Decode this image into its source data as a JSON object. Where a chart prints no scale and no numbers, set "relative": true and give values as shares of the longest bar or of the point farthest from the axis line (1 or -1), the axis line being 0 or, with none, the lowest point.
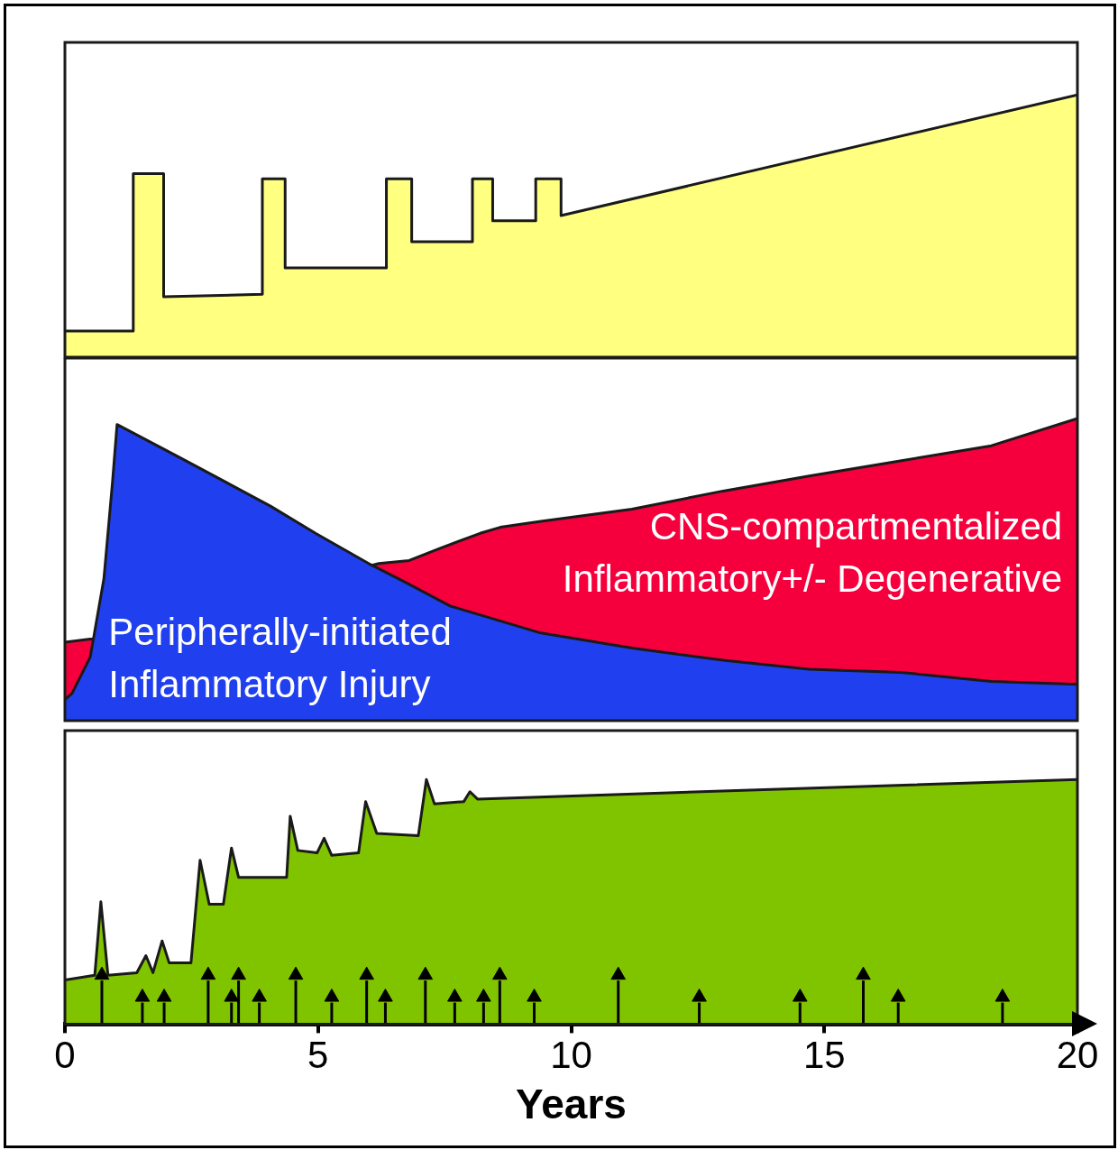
{
  "chart_data": [
    {
      "type": "area",
      "relative": true,
      "xlim": [
        0,
        20
      ],
      "tick_labels": false,
      "legend": false,
      "series": [
        {
          "type": "area",
          "color": "#ffff80",
          "marker": "none",
          "x": [
            0,
            1.35,
            1.35,
            1.95,
            1.95,
            3.9,
            3.9,
            4.35,
            4.35,
            6.35,
            6.35,
            6.85,
            6.85,
            8.05,
            8.05,
            8.45,
            8.45,
            9.3,
            9.3,
            9.8,
            9.8,
            20
          ],
          "values": [
            0.1,
            0.1,
            0.7,
            0.7,
            0.23,
            0.24,
            0.68,
            0.68,
            0.34,
            0.34,
            0.68,
            0.68,
            0.44,
            0.44,
            0.68,
            0.68,
            0.52,
            0.52,
            0.68,
            0.68,
            0.54,
            1
          ]
        }
      ]
    },
    {
      "type": "area",
      "relative": true,
      "xlim": [
        0,
        20
      ],
      "tick_labels": false,
      "legend": false,
      "series": [
        {
          "type": "area",
          "name": "CNS-compartmentalized Inflammatory+/- Degenerative",
          "color": "#f5003c",
          "marker": "none",
          "x": [
            0,
            0.5,
            0.6,
            6.2,
            6.8,
            7.4,
            8.2,
            8.6,
            9.4,
            11.2,
            13,
            14.7,
            16.5,
            18.3,
            20
          ],
          "values": [
            0.26,
            0.27,
            0.27,
            0.52,
            0.53,
            0.57,
            0.62,
            0.64,
            0.66,
            0.7,
            0.76,
            0.81,
            0.86,
            0.91,
            1
          ]
        },
        {
          "type": "area",
          "name": "Peripherally-initiated Inflammatory Injury",
          "color": "#2040f0",
          "marker": "none",
          "x": [
            0,
            0.14,
            0.5,
            0.77,
            0.94,
            1.03,
            2.28,
            4.06,
            4.95,
            6.0,
            6.7,
            7.6,
            9.4,
            11.2,
            13,
            14.7,
            16.5,
            18.3,
            20
          ],
          "values": [
            0.07,
            0.09,
            0.21,
            0.47,
            0.79,
            0.98,
            0.87,
            0.71,
            0.62,
            0.52,
            0.46,
            0.38,
            0.29,
            0.24,
            0.2,
            0.17,
            0.16,
            0.13,
            0.12
          ]
        }
      ]
    },
    {
      "type": "area",
      "relative": true,
      "xlim": [
        0,
        20
      ],
      "xticks": [
        0,
        5,
        10,
        15,
        20
      ],
      "xlabel": "Years",
      "tick_labels": "x",
      "legend": false,
      "series": [
        {
          "type": "area",
          "color": "#80c400",
          "marker": "none",
          "x": [
            0,
            0.59,
            0.71,
            0.85,
            1.42,
            1.6,
            1.74,
            1.92,
            2.06,
            2.49,
            2.67,
            2.85,
            3.13,
            3.29,
            3.43,
            4.38,
            4.45,
            4.6,
            4.98,
            5.12,
            5.27,
            5.8,
            5.94,
            6.16,
            6.98,
            7.14,
            7.3,
            7.88,
            8.0,
            8.15,
            20
          ],
          "values": [
            0.18,
            0.2,
            0.5,
            0.2,
            0.21,
            0.28,
            0.21,
            0.34,
            0.25,
            0.25,
            0.67,
            0.49,
            0.49,
            0.72,
            0.6,
            0.6,
            0.85,
            0.71,
            0.7,
            0.76,
            0.69,
            0.7,
            0.91,
            0.78,
            0.77,
            1,
            0.9,
            0.91,
            0.95,
            0.92,
            1
          ]
        },
        {
          "type": "lollipop",
          "color": "#000000",
          "marker": "triangle",
          "x": [
            0.73,
            1.53,
            1.96,
            2.83,
            3.29,
            3.43,
            3.84,
            4.56,
            5.27,
            5.96,
            6.33,
            7.12,
            7.7,
            8.27,
            8.59,
            9.27,
            10.93,
            12.53,
            14.52,
            15.77,
            16.46,
            18.52
          ],
          "values": [
            0.2,
            0.11,
            0.11,
            0.2,
            0.11,
            0.2,
            0.11,
            0.2,
            0.11,
            0.2,
            0.11,
            0.2,
            0.11,
            0.11,
            0.2,
            0.11,
            0.2,
            0.11,
            0.11,
            0.2,
            0.11,
            0.11
          ]
        }
      ]
    }
  ]
}
